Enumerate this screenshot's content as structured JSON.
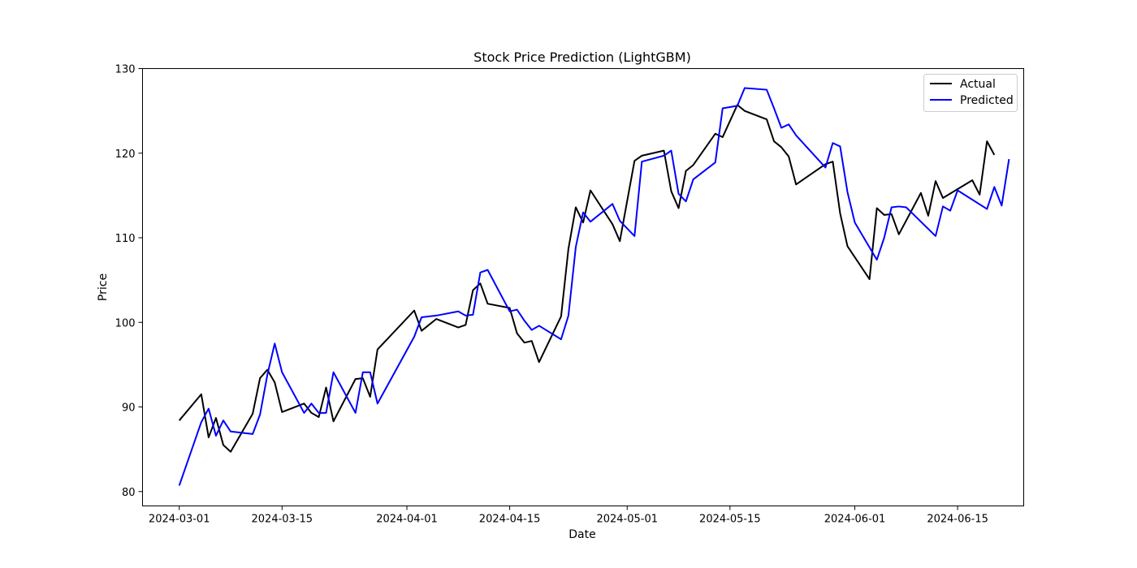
{
  "chart_data": {
    "type": "line",
    "title": "Stock Price Prediction (LightGBM)",
    "xlabel": "Date",
    "ylabel": "Price",
    "ylim": [
      78.3,
      130
    ],
    "xlim": [
      "2024-02-25",
      "2024-06-24"
    ],
    "grid": false,
    "legend_position": "top-right",
    "x_ticks": [
      "2024-03-01",
      "2024-03-15",
      "2024-04-01",
      "2024-04-15",
      "2024-05-01",
      "2024-05-15",
      "2024-06-01",
      "2024-06-15"
    ],
    "y_ticks": [
      80,
      90,
      100,
      110,
      120,
      130
    ],
    "colors": {
      "Actual": "#000000",
      "Predicted": "#0000ff"
    },
    "series": [
      {
        "name": "Actual",
        "points": [
          [
            "2024-03-01",
            88.4
          ],
          [
            "2024-03-04",
            91.5
          ],
          [
            "2024-03-05",
            86.4
          ],
          [
            "2024-03-06",
            88.7
          ],
          [
            "2024-03-07",
            85.5
          ],
          [
            "2024-03-08",
            84.7
          ],
          [
            "2024-03-11",
            89.2
          ],
          [
            "2024-03-12",
            93.4
          ],
          [
            "2024-03-13",
            94.4
          ],
          [
            "2024-03-14",
            92.9
          ],
          [
            "2024-03-15",
            89.4
          ],
          [
            "2024-03-18",
            90.4
          ],
          [
            "2024-03-19",
            89.3
          ],
          [
            "2024-03-20",
            88.8
          ],
          [
            "2024-03-21",
            92.3
          ],
          [
            "2024-03-22",
            88.3
          ],
          [
            "2024-03-25",
            93.3
          ],
          [
            "2024-03-26",
            93.4
          ],
          [
            "2024-03-27",
            91.2
          ],
          [
            "2024-03-28",
            96.8
          ],
          [
            "2024-04-02",
            101.4
          ],
          [
            "2024-04-03",
            99.0
          ],
          [
            "2024-04-05",
            100.4
          ],
          [
            "2024-04-08",
            99.4
          ],
          [
            "2024-04-09",
            99.7
          ],
          [
            "2024-04-10",
            103.8
          ],
          [
            "2024-04-11",
            104.6
          ],
          [
            "2024-04-12",
            102.2
          ],
          [
            "2024-04-15",
            101.7
          ],
          [
            "2024-04-16",
            98.7
          ],
          [
            "2024-04-17",
            97.6
          ],
          [
            "2024-04-18",
            97.8
          ],
          [
            "2024-04-19",
            95.3
          ],
          [
            "2024-04-22",
            100.7
          ],
          [
            "2024-04-23",
            108.7
          ],
          [
            "2024-04-24",
            113.6
          ],
          [
            "2024-04-25",
            111.8
          ],
          [
            "2024-04-26",
            115.6
          ],
          [
            "2024-04-29",
            111.6
          ],
          [
            "2024-04-30",
            109.6
          ],
          [
            "2024-05-02",
            119.1
          ],
          [
            "2024-05-03",
            119.7
          ],
          [
            "2024-05-06",
            120.3
          ],
          [
            "2024-05-07",
            115.5
          ],
          [
            "2024-05-08",
            113.5
          ],
          [
            "2024-05-09",
            117.9
          ],
          [
            "2024-05-10",
            118.6
          ],
          [
            "2024-05-13",
            122.3
          ],
          [
            "2024-05-14",
            121.9
          ],
          [
            "2024-05-16",
            125.7
          ],
          [
            "2024-05-17",
            125.0
          ],
          [
            "2024-05-20",
            124.0
          ],
          [
            "2024-05-21",
            121.4
          ],
          [
            "2024-05-22",
            120.7
          ],
          [
            "2024-05-23",
            119.6
          ],
          [
            "2024-05-24",
            116.3
          ],
          [
            "2024-05-28",
            118.7
          ],
          [
            "2024-05-29",
            119.0
          ],
          [
            "2024-05-30",
            112.9
          ],
          [
            "2024-05-31",
            109.0
          ],
          [
            "2024-06-03",
            105.1
          ],
          [
            "2024-06-04",
            113.5
          ],
          [
            "2024-06-05",
            112.7
          ],
          [
            "2024-06-06",
            112.8
          ],
          [
            "2024-06-07",
            110.4
          ],
          [
            "2024-06-10",
            115.3
          ],
          [
            "2024-06-11",
            112.6
          ],
          [
            "2024-06-12",
            116.7
          ],
          [
            "2024-06-13",
            114.7
          ],
          [
            "2024-06-17",
            116.8
          ],
          [
            "2024-06-18",
            115.1
          ],
          [
            "2024-06-19",
            121.4
          ],
          [
            "2024-06-20",
            119.8
          ]
        ]
      },
      {
        "name": "Predicted",
        "points": [
          [
            "2024-03-01",
            80.7
          ],
          [
            "2024-03-04",
            88.2
          ],
          [
            "2024-03-05",
            89.8
          ],
          [
            "2024-03-06",
            86.6
          ],
          [
            "2024-03-07",
            88.4
          ],
          [
            "2024-03-08",
            87.1
          ],
          [
            "2024-03-11",
            86.8
          ],
          [
            "2024-03-12",
            89.1
          ],
          [
            "2024-03-13",
            93.8
          ],
          [
            "2024-03-14",
            97.5
          ],
          [
            "2024-03-15",
            94.1
          ],
          [
            "2024-03-18",
            89.3
          ],
          [
            "2024-03-19",
            90.4
          ],
          [
            "2024-03-20",
            89.3
          ],
          [
            "2024-03-21",
            89.3
          ],
          [
            "2024-03-22",
            94.1
          ],
          [
            "2024-03-25",
            89.3
          ],
          [
            "2024-03-26",
            94.1
          ],
          [
            "2024-03-27",
            94.1
          ],
          [
            "2024-03-28",
            90.4
          ],
          [
            "2024-04-02",
            98.3
          ],
          [
            "2024-04-03",
            100.6
          ],
          [
            "2024-04-05",
            100.8
          ],
          [
            "2024-04-08",
            101.3
          ],
          [
            "2024-04-09",
            100.8
          ],
          [
            "2024-04-10",
            100.9
          ],
          [
            "2024-04-11",
            105.9
          ],
          [
            "2024-04-12",
            106.2
          ],
          [
            "2024-04-15",
            101.3
          ],
          [
            "2024-04-16",
            101.5
          ],
          [
            "2024-04-17",
            100.2
          ],
          [
            "2024-04-18",
            99.1
          ],
          [
            "2024-04-19",
            99.6
          ],
          [
            "2024-04-22",
            98.0
          ],
          [
            "2024-04-23",
            100.8
          ],
          [
            "2024-04-24",
            108.9
          ],
          [
            "2024-04-25",
            113.0
          ],
          [
            "2024-04-26",
            111.9
          ],
          [
            "2024-04-29",
            114.0
          ],
          [
            "2024-04-30",
            112.0
          ],
          [
            "2024-05-02",
            110.2
          ],
          [
            "2024-05-03",
            119.0
          ],
          [
            "2024-05-06",
            119.7
          ],
          [
            "2024-05-07",
            120.3
          ],
          [
            "2024-05-08",
            115.2
          ],
          [
            "2024-05-09",
            114.3
          ],
          [
            "2024-05-10",
            116.9
          ],
          [
            "2024-05-13",
            118.9
          ],
          [
            "2024-05-14",
            125.3
          ],
          [
            "2024-05-16",
            125.6
          ],
          [
            "2024-05-17",
            127.7
          ],
          [
            "2024-05-20",
            127.5
          ],
          [
            "2024-05-21",
            125.3
          ],
          [
            "2024-05-22",
            123.0
          ],
          [
            "2024-05-23",
            123.4
          ],
          [
            "2024-05-24",
            122.1
          ],
          [
            "2024-05-28",
            118.3
          ],
          [
            "2024-05-29",
            121.2
          ],
          [
            "2024-05-30",
            120.8
          ],
          [
            "2024-05-31",
            115.4
          ],
          [
            "2024-06-01",
            111.8
          ],
          [
            "2024-06-04",
            107.4
          ],
          [
            "2024-06-05",
            110.0
          ],
          [
            "2024-06-06",
            113.6
          ],
          [
            "2024-06-07",
            113.7
          ],
          [
            "2024-06-08",
            113.6
          ],
          [
            "2024-06-12",
            110.2
          ],
          [
            "2024-06-13",
            113.7
          ],
          [
            "2024-06-14",
            113.2
          ],
          [
            "2024-06-15",
            115.6
          ],
          [
            "2024-06-19",
            113.4
          ],
          [
            "2024-06-20",
            116.0
          ],
          [
            "2024-06-21",
            113.8
          ],
          [
            "2024-06-22",
            119.3
          ]
        ]
      }
    ]
  }
}
